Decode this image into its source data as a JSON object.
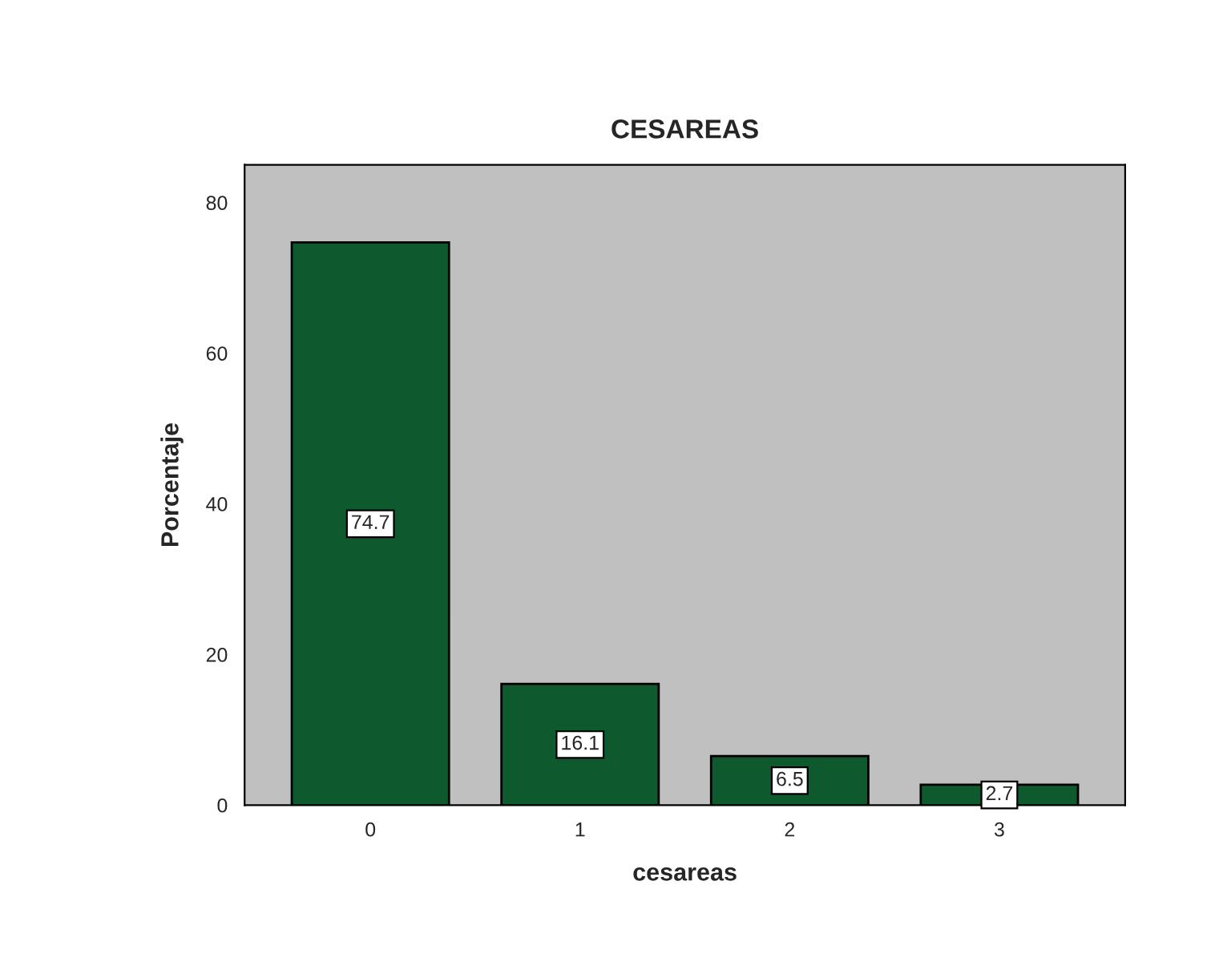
{
  "chart_data": {
    "type": "bar",
    "title": "CESAREAS",
    "xlabel": "cesareas",
    "ylabel": "Porcentaje",
    "categories": [
      "0",
      "1",
      "2",
      "3"
    ],
    "values": [
      74.7,
      16.1,
      6.5,
      2.7
    ],
    "color": "#0e5a2e",
    "ylim": [
      0,
      85
    ],
    "yticks": [
      0,
      20,
      40,
      60,
      80
    ],
    "data_labels": true,
    "grid": false
  }
}
